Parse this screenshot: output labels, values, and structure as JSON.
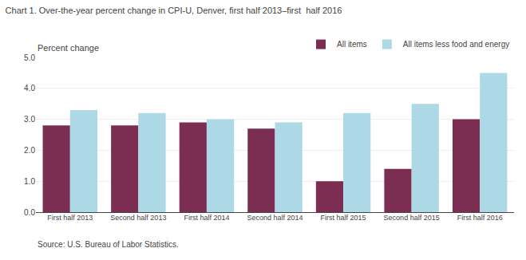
{
  "chart_data": {
    "type": "bar",
    "title": "Chart 1. Over-the-year percent change in CPI-U, Denver, first half 2013–first  half 2016",
    "ylabel": "Percent change",
    "annotations": [
      "Source: U.S. Bureau of Labor Statistics."
    ],
    "categories": [
      "First half 2013",
      "Second half 2013",
      "First half 2014",
      "Second half 2014",
      "First half 2015",
      "Second half 2015",
      "First half 2016"
    ],
    "series": [
      {
        "name": "All items",
        "color": "#7B2D52",
        "values": [
          2.8,
          2.8,
          2.9,
          2.7,
          1.0,
          1.4,
          3.0
        ]
      },
      {
        "name": "All items less food and energy",
        "color": "#ADD8E6",
        "values": [
          3.3,
          3.2,
          3.0,
          2.9,
          3.2,
          3.5,
          4.5
        ]
      }
    ],
    "ylim": [
      0.0,
      5.0
    ],
    "yticks": [
      {
        "value": 0,
        "label": "0.0"
      },
      {
        "value": 1,
        "label": "1.0"
      },
      {
        "value": 2,
        "label": "2.0"
      },
      {
        "value": 3,
        "label": "3.0"
      },
      {
        "value": 4,
        "label": "4.0"
      },
      {
        "value": 5,
        "label": "5.0"
      }
    ],
    "grid": true,
    "legend": "upper right"
  }
}
